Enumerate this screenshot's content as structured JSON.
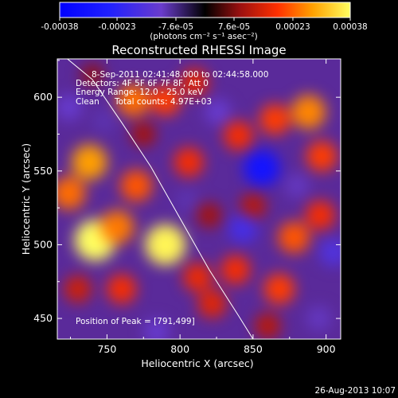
{
  "chart_data": {
    "type": "heatmap",
    "title": "Reconstructed RHESSI Image",
    "xlabel": "Heliocentric X (arcsec)",
    "ylabel": "Heliocentric Y (arcsec)",
    "xlim": [
      716,
      910
    ],
    "ylim": [
      436,
      626
    ],
    "x_ticks": [
      "750",
      "800",
      "850",
      "900"
    ],
    "x_tick_values": [
      750,
      800,
      850,
      900
    ],
    "y_ticks": [
      "450",
      "500",
      "550",
      "600"
    ],
    "y_tick_values": [
      450,
      500,
      550,
      600
    ],
    "colorbar": {
      "unit_label": "(photons cm⁻² s⁻¹ asec⁻²)",
      "range": [
        -0.00038,
        0.00038
      ],
      "tick_labels": [
        "-0.00038",
        "-0.00023",
        "-7.6e-05",
        "7.6e-05",
        "0.00023",
        "0.00038"
      ],
      "tick_values": [
        -0.00038,
        -0.00023,
        -7.6e-05,
        7.6e-05,
        0.00023,
        0.00038
      ]
    },
    "annotations": {
      "time_range": "8-Sep-2011 02:41:48.000 to 02:44:58.000",
      "detectors": "Detectors: 4F 5F 6F 7F 8F, Att 0",
      "energy_range": "Energy Range: 12.0 - 25.0 keV",
      "clean_label": "Clean",
      "total_counts": "Total counts: 4.97E+03",
      "peak_position": "Position of Peak = [791,499]"
    },
    "limb_curve": {
      "x": [
        718,
        740,
        760,
        780,
        800,
        820,
        840,
        850
      ],
      "y": [
        630,
        612,
        583,
        553,
        518,
        483,
        452,
        436
      ]
    },
    "sources": [
      {
        "x": 742,
        "y": 503,
        "value": 0.00038
      },
      {
        "x": 790,
        "y": 500,
        "value": 0.00037
      },
      {
        "x": 757,
        "y": 512,
        "value": 0.00025
      },
      {
        "x": 770,
        "y": 540,
        "value": 0.00022
      },
      {
        "x": 738,
        "y": 556,
        "value": 0.00028
      },
      {
        "x": 724,
        "y": 535,
        "value": 0.00024
      },
      {
        "x": 768,
        "y": 598,
        "value": 0.00024
      },
      {
        "x": 790,
        "y": 598,
        "value": 0.0002
      },
      {
        "x": 810,
        "y": 610,
        "value": 0.00016
      },
      {
        "x": 806,
        "y": 556,
        "value": 0.00018
      },
      {
        "x": 840,
        "y": 574,
        "value": 0.00018
      },
      {
        "x": 865,
        "y": 585,
        "value": 0.0002
      },
      {
        "x": 888,
        "y": 590,
        "value": 0.00026
      },
      {
        "x": 897,
        "y": 560,
        "value": 0.0002
      },
      {
        "x": 878,
        "y": 505,
        "value": 0.00022
      },
      {
        "x": 896,
        "y": 520,
        "value": 0.00018
      },
      {
        "x": 868,
        "y": 470,
        "value": 0.0002
      },
      {
        "x": 838,
        "y": 483,
        "value": 0.00018
      },
      {
        "x": 812,
        "y": 478,
        "value": 0.00017
      },
      {
        "x": 822,
        "y": 460,
        "value": 0.00016
      },
      {
        "x": 760,
        "y": 470,
        "value": 0.00018
      },
      {
        "x": 730,
        "y": 470,
        "value": 0.00014
      },
      {
        "x": 850,
        "y": 526,
        "value": 0.00012
      },
      {
        "x": 820,
        "y": 520,
        "value": 0.0001
      },
      {
        "x": 775,
        "y": 575,
        "value": 0.0001
      },
      {
        "x": 860,
        "y": 445,
        "value": 0.00012
      },
      {
        "x": 740,
        "y": 615,
        "value": 8e-05
      },
      {
        "x": 856,
        "y": 552,
        "value": -0.0003
      },
      {
        "x": 843,
        "y": 511,
        "value": -0.00018
      },
      {
        "x": 826,
        "y": 590,
        "value": -0.00012
      },
      {
        "x": 724,
        "y": 593,
        "value": -0.00012
      },
      {
        "x": 784,
        "y": 441,
        "value": -0.00012
      },
      {
        "x": 905,
        "y": 495,
        "value": -0.00016
      },
      {
        "x": 880,
        "y": 540,
        "value": -0.0001
      },
      {
        "x": 748,
        "y": 584,
        "value": -8e-05
      },
      {
        "x": 805,
        "y": 530,
        "value": -8e-05
      },
      {
        "x": 895,
        "y": 450,
        "value": -0.0001
      }
    ]
  },
  "footer": {
    "timestamp": "26-Aug-2013 10:07"
  }
}
